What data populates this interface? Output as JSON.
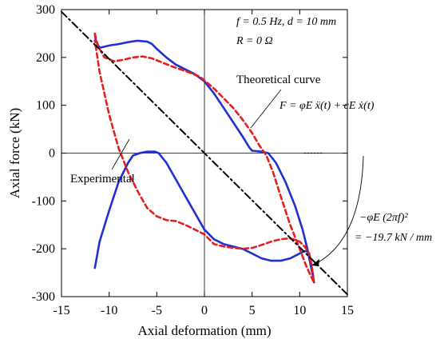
{
  "chart_data": {
    "type": "line",
    "xlabel": "Axial deformation (mm)",
    "ylabel": "Axial force (kN)",
    "xlim": [
      -15,
      15
    ],
    "ylim": [
      -300,
      300
    ],
    "x_ticks": [
      "-15",
      "-10",
      "-5",
      "0",
      "5",
      "10",
      "15"
    ],
    "y_ticks": [
      "300",
      "200",
      "100",
      "0",
      "-100",
      "-200",
      "-300"
    ],
    "grid": false,
    "zero_lines": true,
    "annotations": {
      "conditions_line1": "f = 0.5 Hz, d = 10 mm",
      "conditions_line2": "R = 0  Ω",
      "theoretical_label": "Theoretical curve",
      "formula": "F = φE ẍ(t) + cE ẋ(t)",
      "experimental_label": "Experimental",
      "slope_formula": "−φE (2πf)²",
      "slope_value": "= −19.7 kN / mm"
    },
    "series": [
      {
        "name": "Experimental",
        "color": "#1f2fd0",
        "style": "solid",
        "x": [
          -11.5,
          -11.4,
          -11.0,
          -10.0,
          -9.0,
          -8.0,
          -7.0,
          -6.0,
          -5.5,
          -5.0,
          -4.0,
          -3.0,
          -2.0,
          -1.0,
          0.0,
          1.0,
          2.0,
          3.0,
          4.0,
          4.7,
          5.0,
          6.0,
          6.7,
          7.5,
          8.5,
          9.5,
          10.3,
          10.8,
          11.2,
          11.4,
          11.5,
          11.4,
          11.2,
          11.0,
          10.8,
          10.5,
          10.0,
          9.0,
          8.0,
          7.0,
          6.0,
          5.0,
          4.0,
          3.0,
          2.0,
          1.0,
          0.0,
          -1.0,
          -2.0,
          -3.0,
          -4.0,
          -4.8,
          -5.2,
          -6.0,
          -6.8,
          -7.5,
          -8.0,
          -9.0,
          -10.0,
          -11.0,
          -11.5
        ],
        "y": [
          248,
          235,
          220,
          225,
          228,
          232,
          235,
          233,
          228,
          218,
          200,
          185,
          175,
          165,
          150,
          125,
          95,
          65,
          35,
          12,
          5,
          3,
          0,
          -20,
          -60,
          -110,
          -160,
          -200,
          -240,
          -258,
          -270,
          -255,
          -235,
          -215,
          -205,
          -205,
          -210,
          -220,
          -225,
          -225,
          -220,
          -210,
          -200,
          -195,
          -190,
          -180,
          -160,
          -125,
          -90,
          -55,
          -20,
          0,
          3,
          3,
          0,
          -5,
          -20,
          -60,
          -120,
          -185,
          -240
        ]
      },
      {
        "name": "Theoretical curve",
        "color": "#e51e1e",
        "style": "dashed",
        "x": [
          -11.5,
          -11.2,
          -10.5,
          -9.5,
          -8.5,
          -7.5,
          -6.5,
          -5.5,
          -4.5,
          -3.5,
          -2.5,
          -1.5,
          -0.5,
          0.0,
          1.0,
          2.0,
          3.0,
          4.0,
          5.0,
          5.8,
          6.5,
          7.2,
          8.0,
          9.0,
          10.0,
          10.6,
          11.0,
          11.3,
          11.5,
          11.3,
          11.0,
          10.5,
          10.0,
          9.0,
          8.0,
          7.0,
          6.0,
          5.0,
          4.0,
          3.0,
          2.0,
          1.0,
          0.0,
          -1.0,
          -2.0,
          -3.0,
          -4.0,
          -5.0,
          -6.0,
          -7.0,
          -8.0,
          -9.0,
          -10.0,
          -11.0,
          -11.5
        ],
        "y": [
          250,
          225,
          200,
          192,
          195,
          200,
          202,
          198,
          190,
          182,
          175,
          168,
          160,
          152,
          135,
          115,
          95,
          70,
          42,
          15,
          -5,
          -40,
          -90,
          -150,
          -200,
          -232,
          -250,
          -262,
          -270,
          -240,
          -210,
          -195,
          -185,
          -178,
          -180,
          -185,
          -192,
          -198,
          -200,
          -198,
          -195,
          -190,
          -170,
          -160,
          -150,
          -142,
          -140,
          -132,
          -115,
          -80,
          -40,
          10,
          80,
          170,
          235
        ]
      },
      {
        "name": "",
        "color": "#000000",
        "style": "dashdot",
        "x": [
          -15,
          15
        ],
        "y": [
          295.5,
          -295.5
        ]
      },
      {
        "name": "",
        "color": "#000000",
        "style": "dotted",
        "x": [
          10.5,
          12.5
        ],
        "y": [
          0,
          0
        ]
      }
    ]
  }
}
